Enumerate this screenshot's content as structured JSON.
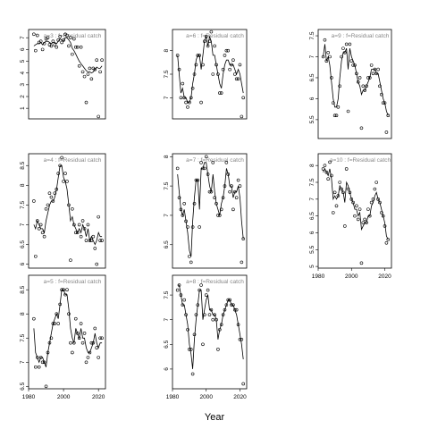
{
  "chart_data": {
    "type": "line",
    "xlabel": "Year",
    "panels": [
      {
        "label": "a=3 : f=Residual catch",
        "xlim": [
          1980,
          2024
        ],
        "ylim": [
          0.1,
          7.7
        ],
        "yticks": [
          1,
          2,
          3,
          4,
          5,
          6,
          7
        ],
        "show_xticks": false,
        "x": [
          1983,
          1984,
          1985,
          1986,
          1987,
          1988,
          1989,
          1990,
          1991,
          1992,
          1993,
          1994,
          1995,
          1996,
          1997,
          1998,
          1999,
          2000,
          2001,
          2002,
          2003,
          2004,
          2005,
          2006,
          2007,
          2008,
          2009,
          2010,
          2011,
          2012,
          2013,
          2014,
          2015,
          2016,
          2017,
          2018,
          2019,
          2020,
          2021,
          2022
        ],
        "points": [
          7.3,
          5.9,
          7.2,
          6.6,
          6.7,
          6.0,
          6.5,
          6.9,
          7.0,
          6.4,
          6.3,
          6.7,
          6.4,
          6.2,
          6.8,
          7.1,
          6.6,
          6.8,
          7.3,
          7.2,
          6.3,
          7.0,
          5.6,
          6.9,
          6.2,
          6.2,
          4.6,
          6.2,
          4.1,
          3.7,
          1.5,
          3.9,
          4.4,
          3.5,
          4.4,
          4.3,
          5.1,
          0.3,
          4.1,
          5.1
        ],
        "line": [
          6.3,
          6.4,
          6.5,
          6.5,
          6.6,
          6.4,
          6.6,
          6.7,
          6.7,
          6.6,
          6.5,
          6.6,
          6.6,
          6.5,
          6.7,
          6.9,
          6.8,
          6.7,
          7.0,
          7.0,
          6.8,
          6.6,
          6.1,
          5.9,
          5.6,
          5.3,
          5.0,
          4.8,
          4.6,
          4.4,
          4.2,
          4.1,
          4.1,
          4.0,
          4.1,
          4.3,
          4.5,
          4.4,
          4.4,
          4.6
        ]
      },
      {
        "label": "a=6 : f=Residual catch",
        "xlim": [
          1980,
          2024
        ],
        "ylim": [
          6.55,
          8.45
        ],
        "yticks": [
          7.0,
          7.5,
          8.0
        ],
        "show_xticks": false,
        "x": [
          1983,
          1984,
          1985,
          1986,
          1987,
          1988,
          1989,
          1990,
          1991,
          1992,
          1993,
          1994,
          1995,
          1996,
          1997,
          1998,
          1999,
          2000,
          2001,
          2002,
          2003,
          2004,
          2005,
          2006,
          2007,
          2008,
          2009,
          2010,
          2011,
          2012,
          2013,
          2014,
          2015,
          2016,
          2017,
          2018,
          2019,
          2020,
          2021,
          2022
        ],
        "points": [
          7.9,
          7.6,
          7.0,
          7.3,
          7.0,
          6.9,
          6.8,
          6.9,
          7.0,
          7.2,
          7.5,
          7.7,
          7.9,
          7.9,
          6.9,
          7.7,
          8.2,
          8.3,
          8.1,
          8.2,
          8.4,
          7.5,
          8.1,
          7.7,
          7.5,
          7.1,
          7.1,
          7.6,
          7.9,
          8.0,
          8.0,
          7.6,
          7.7,
          7.8,
          7.5,
          7.4,
          7.4,
          7.7,
          6.6,
          7.0
        ],
        "line": [
          7.9,
          7.5,
          7.1,
          7.2,
          7.0,
          7.0,
          6.9,
          6.9,
          7.0,
          7.3,
          7.5,
          7.8,
          7.9,
          7.9,
          7.6,
          7.9,
          8.2,
          8.3,
          8.1,
          8.3,
          8.2,
          7.9,
          7.9,
          7.7,
          7.5,
          7.3,
          7.2,
          7.5,
          7.7,
          7.8,
          7.8,
          7.7,
          7.7,
          7.7,
          7.6,
          7.5,
          7.6,
          7.5,
          7.3,
          7.1
        ]
      },
      {
        "label": "a=9 : f=Residual catch",
        "xlim": [
          1980,
          2024
        ],
        "ylim": [
          5.05,
          7.65
        ],
        "yticks": [
          5.5,
          6.0,
          6.5,
          7.0,
          7.5
        ],
        "show_xticks": false,
        "x": [
          1983,
          1984,
          1985,
          1986,
          1987,
          1988,
          1989,
          1990,
          1991,
          1992,
          1993,
          1994,
          1995,
          1996,
          1997,
          1998,
          1999,
          2000,
          2001,
          2002,
          2003,
          2004,
          2005,
          2006,
          2007,
          2008,
          2009,
          2010,
          2011,
          2012,
          2013,
          2014,
          2015,
          2016,
          2017,
          2018,
          2019,
          2020,
          2021,
          2022
        ],
        "points": [
          7.0,
          7.4,
          6.9,
          7.1,
          7.0,
          6.5,
          5.9,
          5.6,
          5.6,
          5.8,
          6.3,
          7.0,
          7.2,
          7.1,
          7.3,
          5.7,
          7.3,
          6.9,
          6.8,
          6.8,
          6.6,
          6.4,
          6.5,
          5.3,
          6.3,
          6.2,
          6.3,
          6.5,
          6.5,
          6.8,
          6.6,
          6.7,
          6.6,
          6.7,
          6.3,
          6.1,
          5.9,
          5.9,
          5.2,
          5.6
        ],
        "line": [
          7.0,
          7.3,
          6.9,
          7.0,
          6.8,
          6.4,
          6.0,
          5.8,
          5.8,
          6.0,
          6.5,
          6.9,
          7.1,
          7.1,
          7.2,
          6.7,
          7.2,
          7.0,
          6.9,
          6.8,
          6.6,
          6.4,
          6.3,
          6.1,
          6.2,
          6.2,
          6.3,
          6.4,
          6.5,
          6.7,
          6.7,
          6.7,
          6.6,
          6.6,
          6.4,
          6.2,
          6.0,
          5.9,
          5.7,
          5.6
        ]
      },
      {
        "label": "a=4 : f=Residual catch",
        "xlim": [
          1980,
          2024
        ],
        "ylim": [
          5.9,
          8.8
        ],
        "yticks": [
          6.0,
          6.5,
          7.0,
          7.5,
          8.0,
          8.5
        ],
        "show_xticks": false,
        "x": [
          1983,
          1984,
          1985,
          1986,
          1987,
          1988,
          1989,
          1990,
          1991,
          1992,
          1993,
          1994,
          1995,
          1996,
          1997,
          1998,
          1999,
          2000,
          2001,
          2002,
          2003,
          2004,
          2005,
          2006,
          2007,
          2008,
          2009,
          2010,
          2011,
          2012,
          2013,
          2014,
          2015,
          2016,
          2017,
          2018,
          2019,
          2020,
          2021,
          2022
        ],
        "points": [
          7.6,
          6.2,
          7.1,
          6.9,
          7.0,
          6.8,
          6.7,
          7.4,
          7.5,
          7.8,
          7.7,
          7.6,
          7.8,
          7.9,
          8.3,
          8.5,
          8.7,
          8.1,
          8.3,
          8.1,
          7.5,
          6.1,
          7.4,
          7.0,
          6.8,
          6.8,
          7.0,
          6.7,
          7.1,
          6.9,
          6.6,
          7.0,
          6.6,
          6.6,
          6.7,
          6.4,
          6.0,
          7.2,
          6.6,
          6.6
        ],
        "line": [
          7.0,
          6.9,
          7.1,
          7.0,
          6.9,
          6.9,
          6.8,
          7.1,
          7.3,
          7.5,
          7.6,
          7.6,
          7.7,
          7.9,
          8.2,
          8.5,
          8.5,
          8.2,
          8.1,
          7.9,
          7.5,
          7.1,
          7.2,
          7.0,
          6.9,
          6.8,
          6.9,
          6.8,
          7.0,
          6.9,
          6.7,
          6.9,
          6.6,
          6.7,
          6.6,
          6.5,
          6.6,
          6.8,
          6.7,
          6.7
        ]
      },
      {
        "label": "a=7 : f=Residual catch",
        "xlim": [
          1980,
          2024
        ],
        "ylim": [
          6.1,
          8.05
        ],
        "yticks": [
          6.5,
          7.0,
          7.5,
          8.0
        ],
        "show_xticks": false,
        "x": [
          1983,
          1984,
          1985,
          1986,
          1987,
          1988,
          1989,
          1990,
          1991,
          1992,
          1993,
          1994,
          1995,
          1996,
          1997,
          1998,
          1999,
          2000,
          2001,
          2002,
          2003,
          2004,
          2005,
          2006,
          2007,
          2008,
          2009,
          2010,
          2011,
          2012,
          2013,
          2014,
          2015,
          2016,
          2017,
          2018,
          2019,
          2020,
          2021,
          2022
        ],
        "points": [
          7.8,
          7.3,
          7.1,
          7.0,
          7.2,
          6.9,
          6.8,
          6.3,
          6.2,
          6.8,
          7.2,
          7.6,
          7.6,
          6.8,
          7.9,
          7.8,
          7.8,
          8.0,
          7.7,
          7.4,
          7.4,
          7.9,
          7.3,
          7.2,
          7.0,
          7.0,
          7.1,
          7.3,
          7.5,
          7.9,
          7.7,
          7.4,
          7.5,
          7.1,
          7.4,
          7.3,
          7.6,
          7.5,
          6.2,
          6.6
        ],
        "line": [
          7.7,
          7.4,
          7.1,
          7.0,
          7.1,
          6.9,
          6.7,
          6.4,
          6.3,
          6.9,
          7.3,
          7.6,
          7.6,
          7.1,
          7.8,
          7.8,
          7.9,
          7.9,
          7.7,
          7.5,
          7.4,
          7.7,
          7.4,
          7.2,
          7.1,
          7.0,
          7.2,
          7.3,
          7.5,
          7.8,
          7.7,
          7.5,
          7.5,
          7.3,
          7.4,
          7.4,
          7.5,
          7.3,
          6.9,
          6.6
        ]
      },
      {
        "label": "a=10 : f=Residual catch",
        "xlim": [
          1980,
          2024
        ],
        "ylim": [
          4.95,
          8.35
        ],
        "yticks": [
          5.0,
          5.5,
          6.0,
          6.5,
          7.0,
          7.5,
          8.0
        ],
        "show_xticks": true,
        "xticks": [
          1980,
          2000,
          2020
        ],
        "x": [
          1983,
          1984,
          1985,
          1986,
          1987,
          1988,
          1989,
          1990,
          1991,
          1992,
          1993,
          1994,
          1995,
          1996,
          1997,
          1998,
          1999,
          2000,
          2001,
          2002,
          2003,
          2004,
          2005,
          2006,
          2007,
          2008,
          2009,
          2010,
          2011,
          2012,
          2013,
          2014,
          2015,
          2016,
          2017,
          2018,
          2019,
          2020,
          2021,
          2022
        ],
        "points": [
          7.9,
          8.0,
          7.8,
          7.6,
          8.1,
          7.7,
          6.6,
          7.2,
          6.8,
          7.1,
          7.5,
          7.3,
          7.2,
          6.2,
          7.9,
          7.3,
          7.2,
          7.0,
          6.9,
          6.5,
          6.8,
          6.4,
          6.7,
          5.1,
          6.3,
          6.4,
          6.3,
          6.7,
          6.5,
          6.9,
          7.0,
          7.3,
          7.5,
          7.0,
          6.9,
          6.6,
          6.5,
          6.2,
          5.7,
          5.8
        ],
        "line": [
          7.8,
          7.9,
          7.8,
          7.7,
          7.9,
          7.6,
          7.0,
          7.1,
          7.0,
          7.1,
          7.4,
          7.3,
          7.2,
          6.9,
          7.5,
          7.4,
          7.2,
          7.0,
          6.9,
          6.7,
          6.7,
          6.5,
          6.6,
          6.1,
          6.2,
          6.3,
          6.3,
          6.5,
          6.5,
          6.8,
          6.9,
          7.1,
          7.2,
          7.0,
          6.9,
          6.7,
          6.5,
          6.3,
          5.9,
          5.8
        ]
      },
      {
        "label": "a=5 : f=Residual catch",
        "xlim": [
          1980,
          2024
        ],
        "ylim": [
          6.45,
          8.8
        ],
        "yticks": [
          6.5,
          7.0,
          7.5,
          8.0,
          8.5
        ],
        "show_xticks": true,
        "xticks": [
          1980,
          2000,
          2020
        ],
        "x": [
          1983,
          1984,
          1985,
          1986,
          1987,
          1988,
          1989,
          1990,
          1991,
          1992,
          1993,
          1994,
          1995,
          1996,
          1997,
          1998,
          1999,
          2000,
          2001,
          2002,
          2003,
          2004,
          2005,
          2006,
          2007,
          2008,
          2009,
          2010,
          2011,
          2012,
          2013,
          2014,
          2015,
          2016,
          2017,
          2018,
          2019,
          2020,
          2021,
          2022
        ],
        "points": [
          7.9,
          6.9,
          7.1,
          6.9,
          7.1,
          7.0,
          7.0,
          6.5,
          7.2,
          7.4,
          7.5,
          7.8,
          7.8,
          8.0,
          7.8,
          8.2,
          8.5,
          8.5,
          8.4,
          8.5,
          8.0,
          7.4,
          7.2,
          7.4,
          7.9,
          7.6,
          7.5,
          7.8,
          7.4,
          7.6,
          7.0,
          7.1,
          7.2,
          7.4,
          7.4,
          7.7,
          7.3,
          7.1,
          7.5,
          7.5
        ],
        "line": [
          7.7,
          7.2,
          7.1,
          7.0,
          7.1,
          7.1,
          7.0,
          6.9,
          7.2,
          7.4,
          7.6,
          7.8,
          7.9,
          8.0,
          7.9,
          8.2,
          8.5,
          8.5,
          8.4,
          8.4,
          8.1,
          7.7,
          7.5,
          7.4,
          7.7,
          7.6,
          7.5,
          7.7,
          7.5,
          7.5,
          7.3,
          7.2,
          7.2,
          7.3,
          7.4,
          7.6,
          7.4,
          7.3,
          7.4,
          7.4
        ]
      },
      {
        "label": "a=8 : f=Residual catch",
        "xlim": [
          1980,
          2024
        ],
        "ylim": [
          5.6,
          7.9
        ],
        "yticks": [
          6.0,
          6.5,
          7.0,
          7.5
        ],
        "show_xticks": true,
        "xticks": [
          1980,
          2000,
          2020
        ],
        "x": [
          1983,
          1984,
          1985,
          1986,
          1987,
          1988,
          1989,
          1990,
          1991,
          1992,
          1993,
          1994,
          1995,
          1996,
          1997,
          1998,
          1999,
          2000,
          2001,
          2002,
          2003,
          2004,
          2005,
          2006,
          2007,
          2008,
          2009,
          2010,
          2011,
          2012,
          2013,
          2014,
          2015,
          2016,
          2017,
          2018,
          2019,
          2020,
          2021,
          2022
        ],
        "points": [
          7.6,
          7.7,
          7.5,
          7.3,
          7.4,
          7.1,
          6.8,
          6.4,
          6.4,
          5.9,
          6.7,
          7.1,
          7.3,
          7.6,
          7.7,
          6.5,
          7.1,
          7.5,
          7.6,
          7.1,
          7.2,
          7.0,
          7.1,
          7.0,
          6.4,
          6.8,
          6.9,
          7.1,
          7.2,
          7.3,
          7.4,
          7.4,
          7.3,
          7.3,
          7.2,
          7.2,
          6.9,
          6.6,
          6.6,
          5.7
        ],
        "line": [
          7.7,
          7.7,
          7.5,
          7.3,
          7.3,
          7.1,
          6.9,
          6.5,
          6.3,
          6.0,
          6.6,
          7.0,
          7.3,
          7.6,
          7.6,
          7.0,
          7.2,
          7.4,
          7.5,
          7.2,
          7.2,
          7.1,
          7.1,
          7.0,
          6.6,
          6.8,
          6.9,
          7.1,
          7.2,
          7.3,
          7.4,
          7.4,
          7.3,
          7.3,
          7.2,
          7.1,
          6.9,
          6.7,
          6.5,
          6.2
        ]
      }
    ]
  }
}
